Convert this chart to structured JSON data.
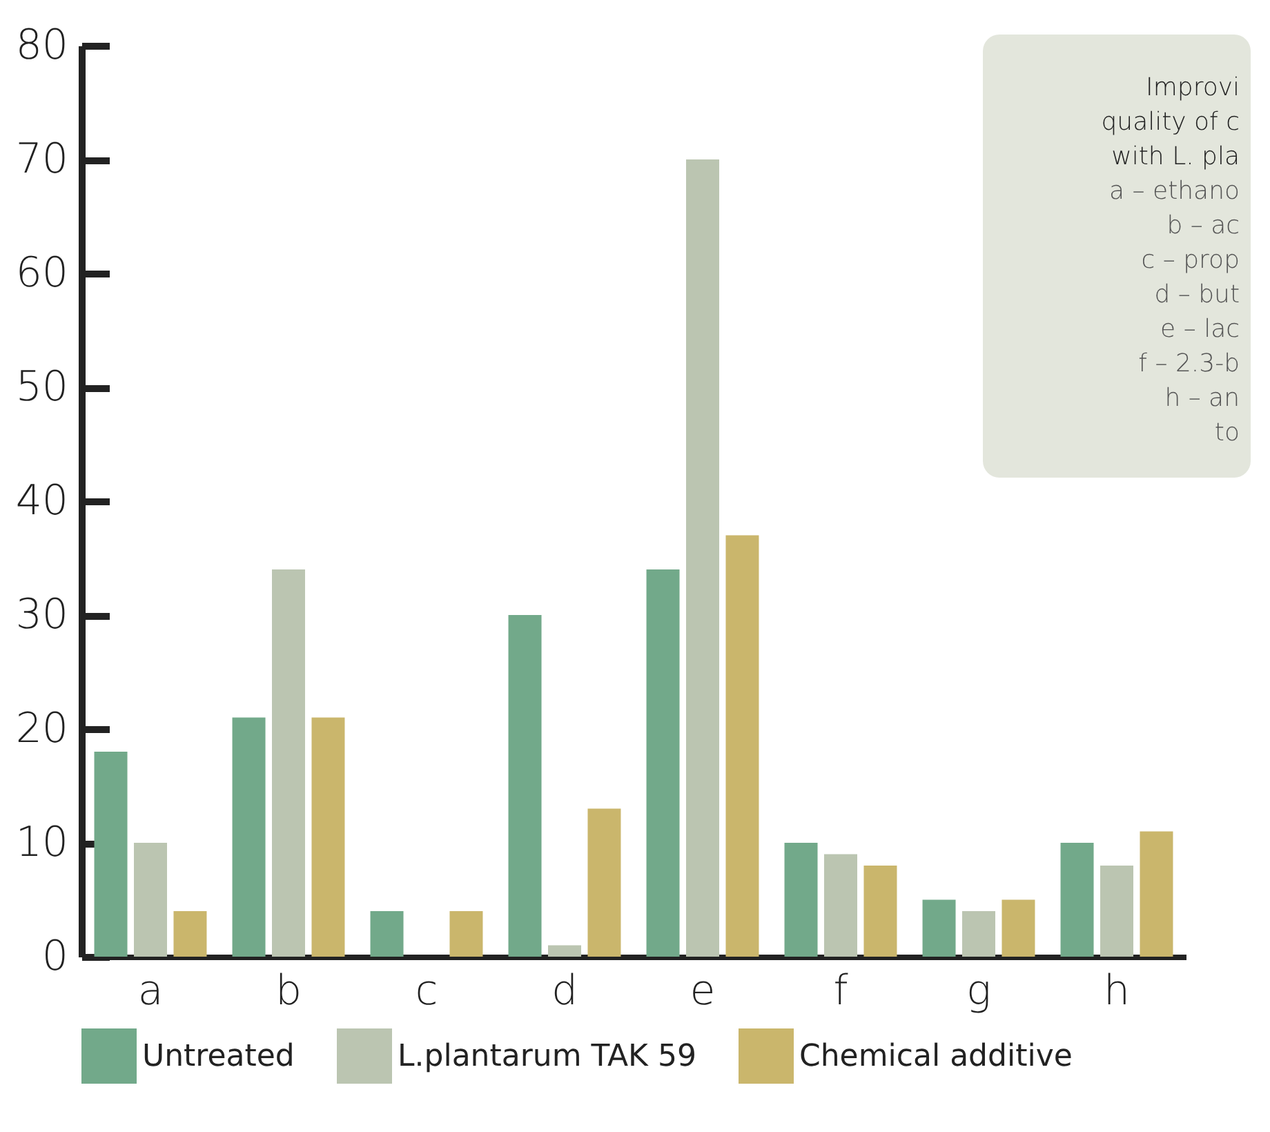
{
  "chart_data": {
    "type": "bar",
    "categories": [
      "a",
      "b",
      "c",
      "d",
      "e",
      "f",
      "g",
      "h"
    ],
    "series": [
      {
        "name": "Untreated",
        "color": "#72a98a",
        "values": [
          18,
          21,
          4,
          30,
          34,
          10,
          5,
          10
        ]
      },
      {
        "name": "L.plantarum TAK 59",
        "color": "#bbc5b1",
        "values": [
          10,
          34,
          0,
          1,
          70,
          9,
          4,
          8
        ]
      },
      {
        "name": "Chemical additive",
        "color": "#cab66c",
        "values": [
          4,
          21,
          4,
          13,
          37,
          8,
          5,
          11
        ]
      }
    ],
    "ylim": [
      0,
      80
    ],
    "yticks": [
      0,
      10,
      20,
      30,
      40,
      50,
      60,
      70,
      80
    ],
    "grid": false,
    "legend": "bottom",
    "annotations": [
      "Improvi",
      "quality of c",
      "with L. pla",
      "a – ethano",
      "b – ac",
      "c – prop",
      "d – but",
      "e – lac",
      "f – 2.3-b",
      "h – an",
      "to"
    ]
  }
}
